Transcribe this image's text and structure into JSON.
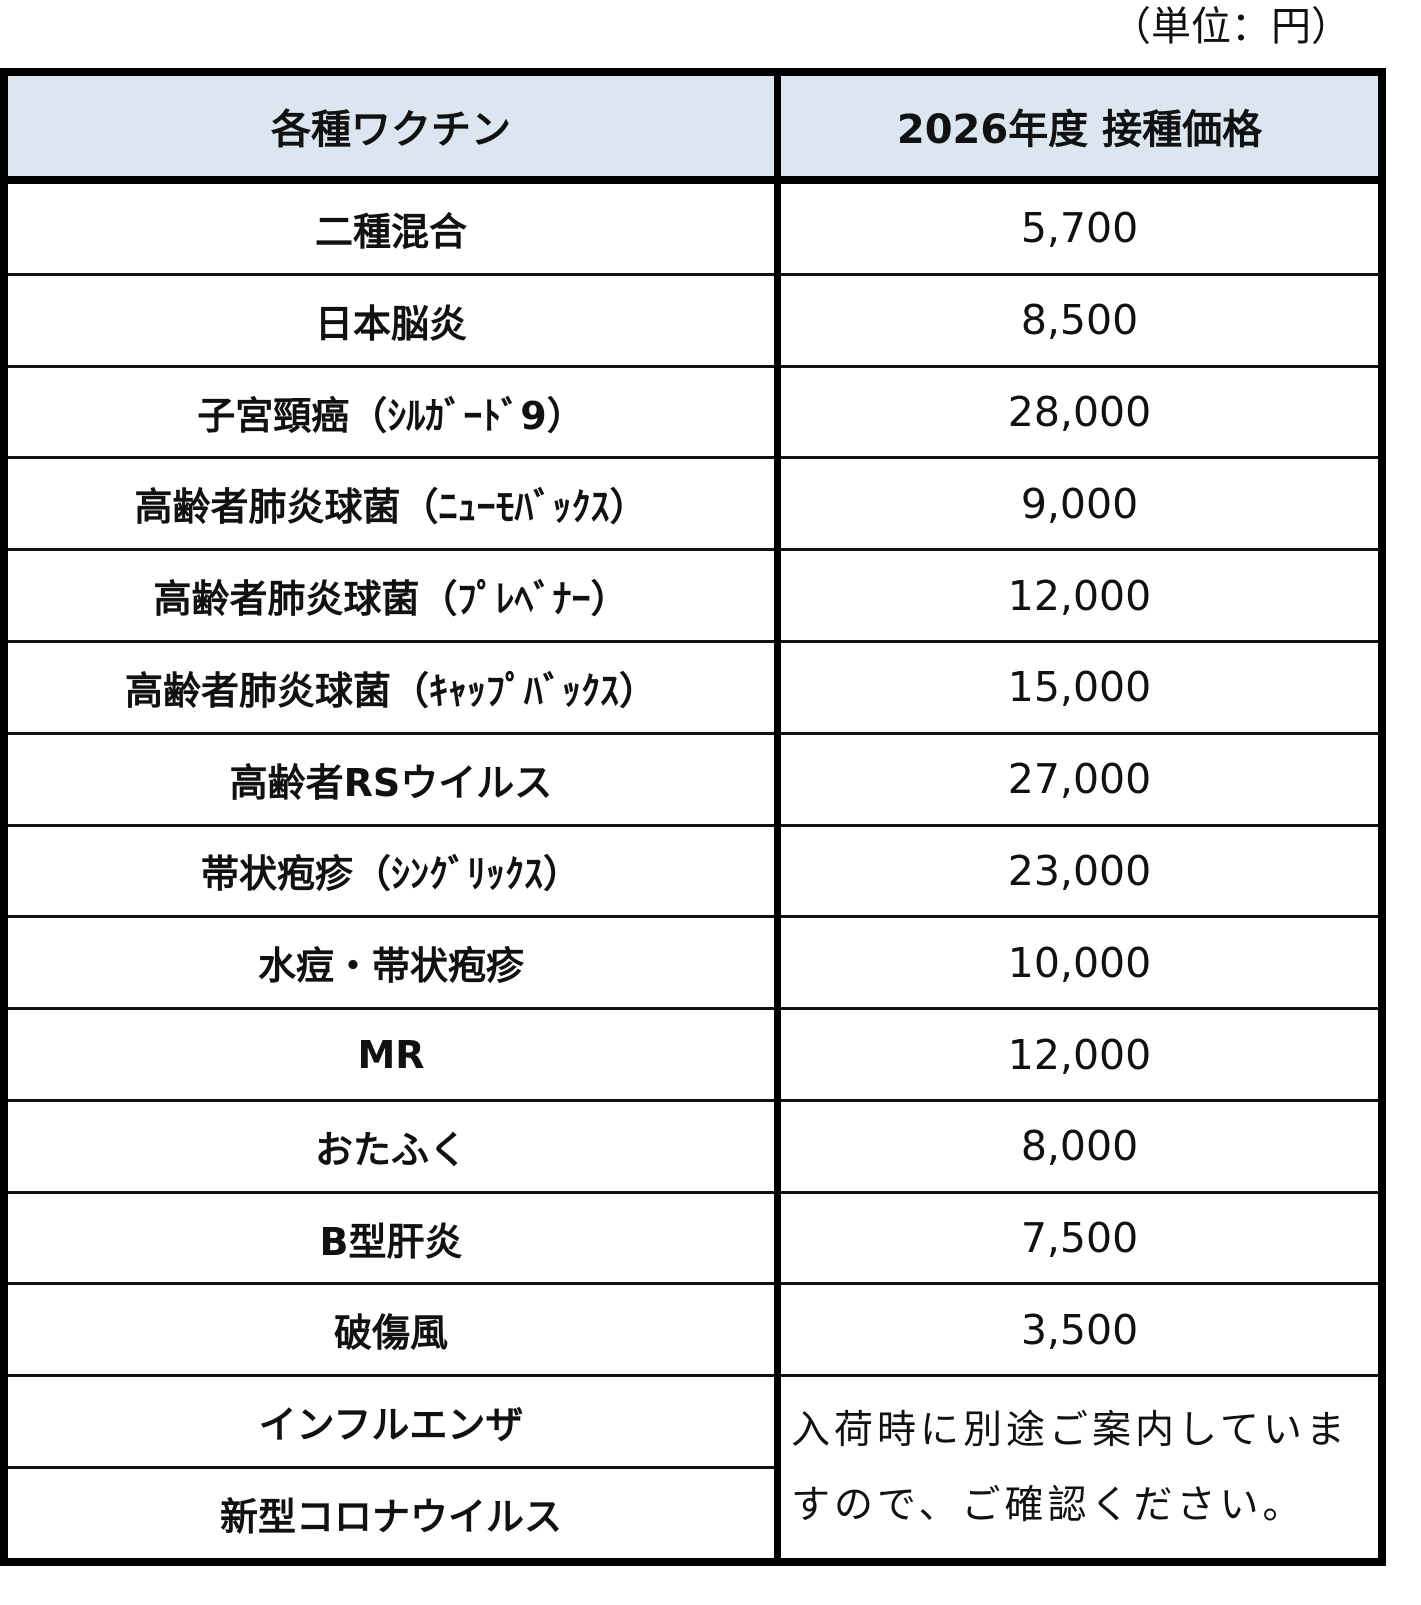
{
  "unit_label": "（単位：円）",
  "headers": [
    "各種ワクチン",
    "2026年度 接種価格"
  ],
  "rows": [
    {
      "name": "二種混合",
      "price": "5,700"
    },
    {
      "name": "日本脳炎",
      "price": "8,500"
    },
    {
      "name": "子宮頸癌（ｼﾙｶﾞｰﾄﾞ9）",
      "price": "28,000"
    },
    {
      "name": "高齢者肺炎球菌（ﾆｭｰﾓﾊﾞｯｸｽ）",
      "price": "9,000"
    },
    {
      "name": "高齢者肺炎球菌（ﾌﾟﾚﾍﾞﾅｰ）",
      "price": "12,000"
    },
    {
      "name": "高齢者肺炎球菌（ｷｬｯﾌﾟﾊﾞｯｸｽ）",
      "price": "15,000"
    },
    {
      "name": "高齢者RSウイルス",
      "price": "27,000"
    },
    {
      "name": "帯状疱疹（ｼﾝｸﾞﾘｯｸｽ）",
      "price": "23,000"
    },
    {
      "name": "水痘・帯状疱疹",
      "price": "10,000"
    },
    {
      "name": "MR",
      "price": "12,000"
    },
    {
      "name": "おたふく",
      "price": "8,000"
    },
    {
      "name": "B型肝炎",
      "price": "7,500"
    },
    {
      "name": "破傷風",
      "price": "3,500"
    }
  ],
  "merged_rows": [
    "インフルエンザ",
    "新型コロナウイルス"
  ],
  "merged_note": "入荷時に別途ご案内していますので、ご確認ください。",
  "colors": {
    "header_bg": "#dce6f1",
    "border": "#000000"
  }
}
